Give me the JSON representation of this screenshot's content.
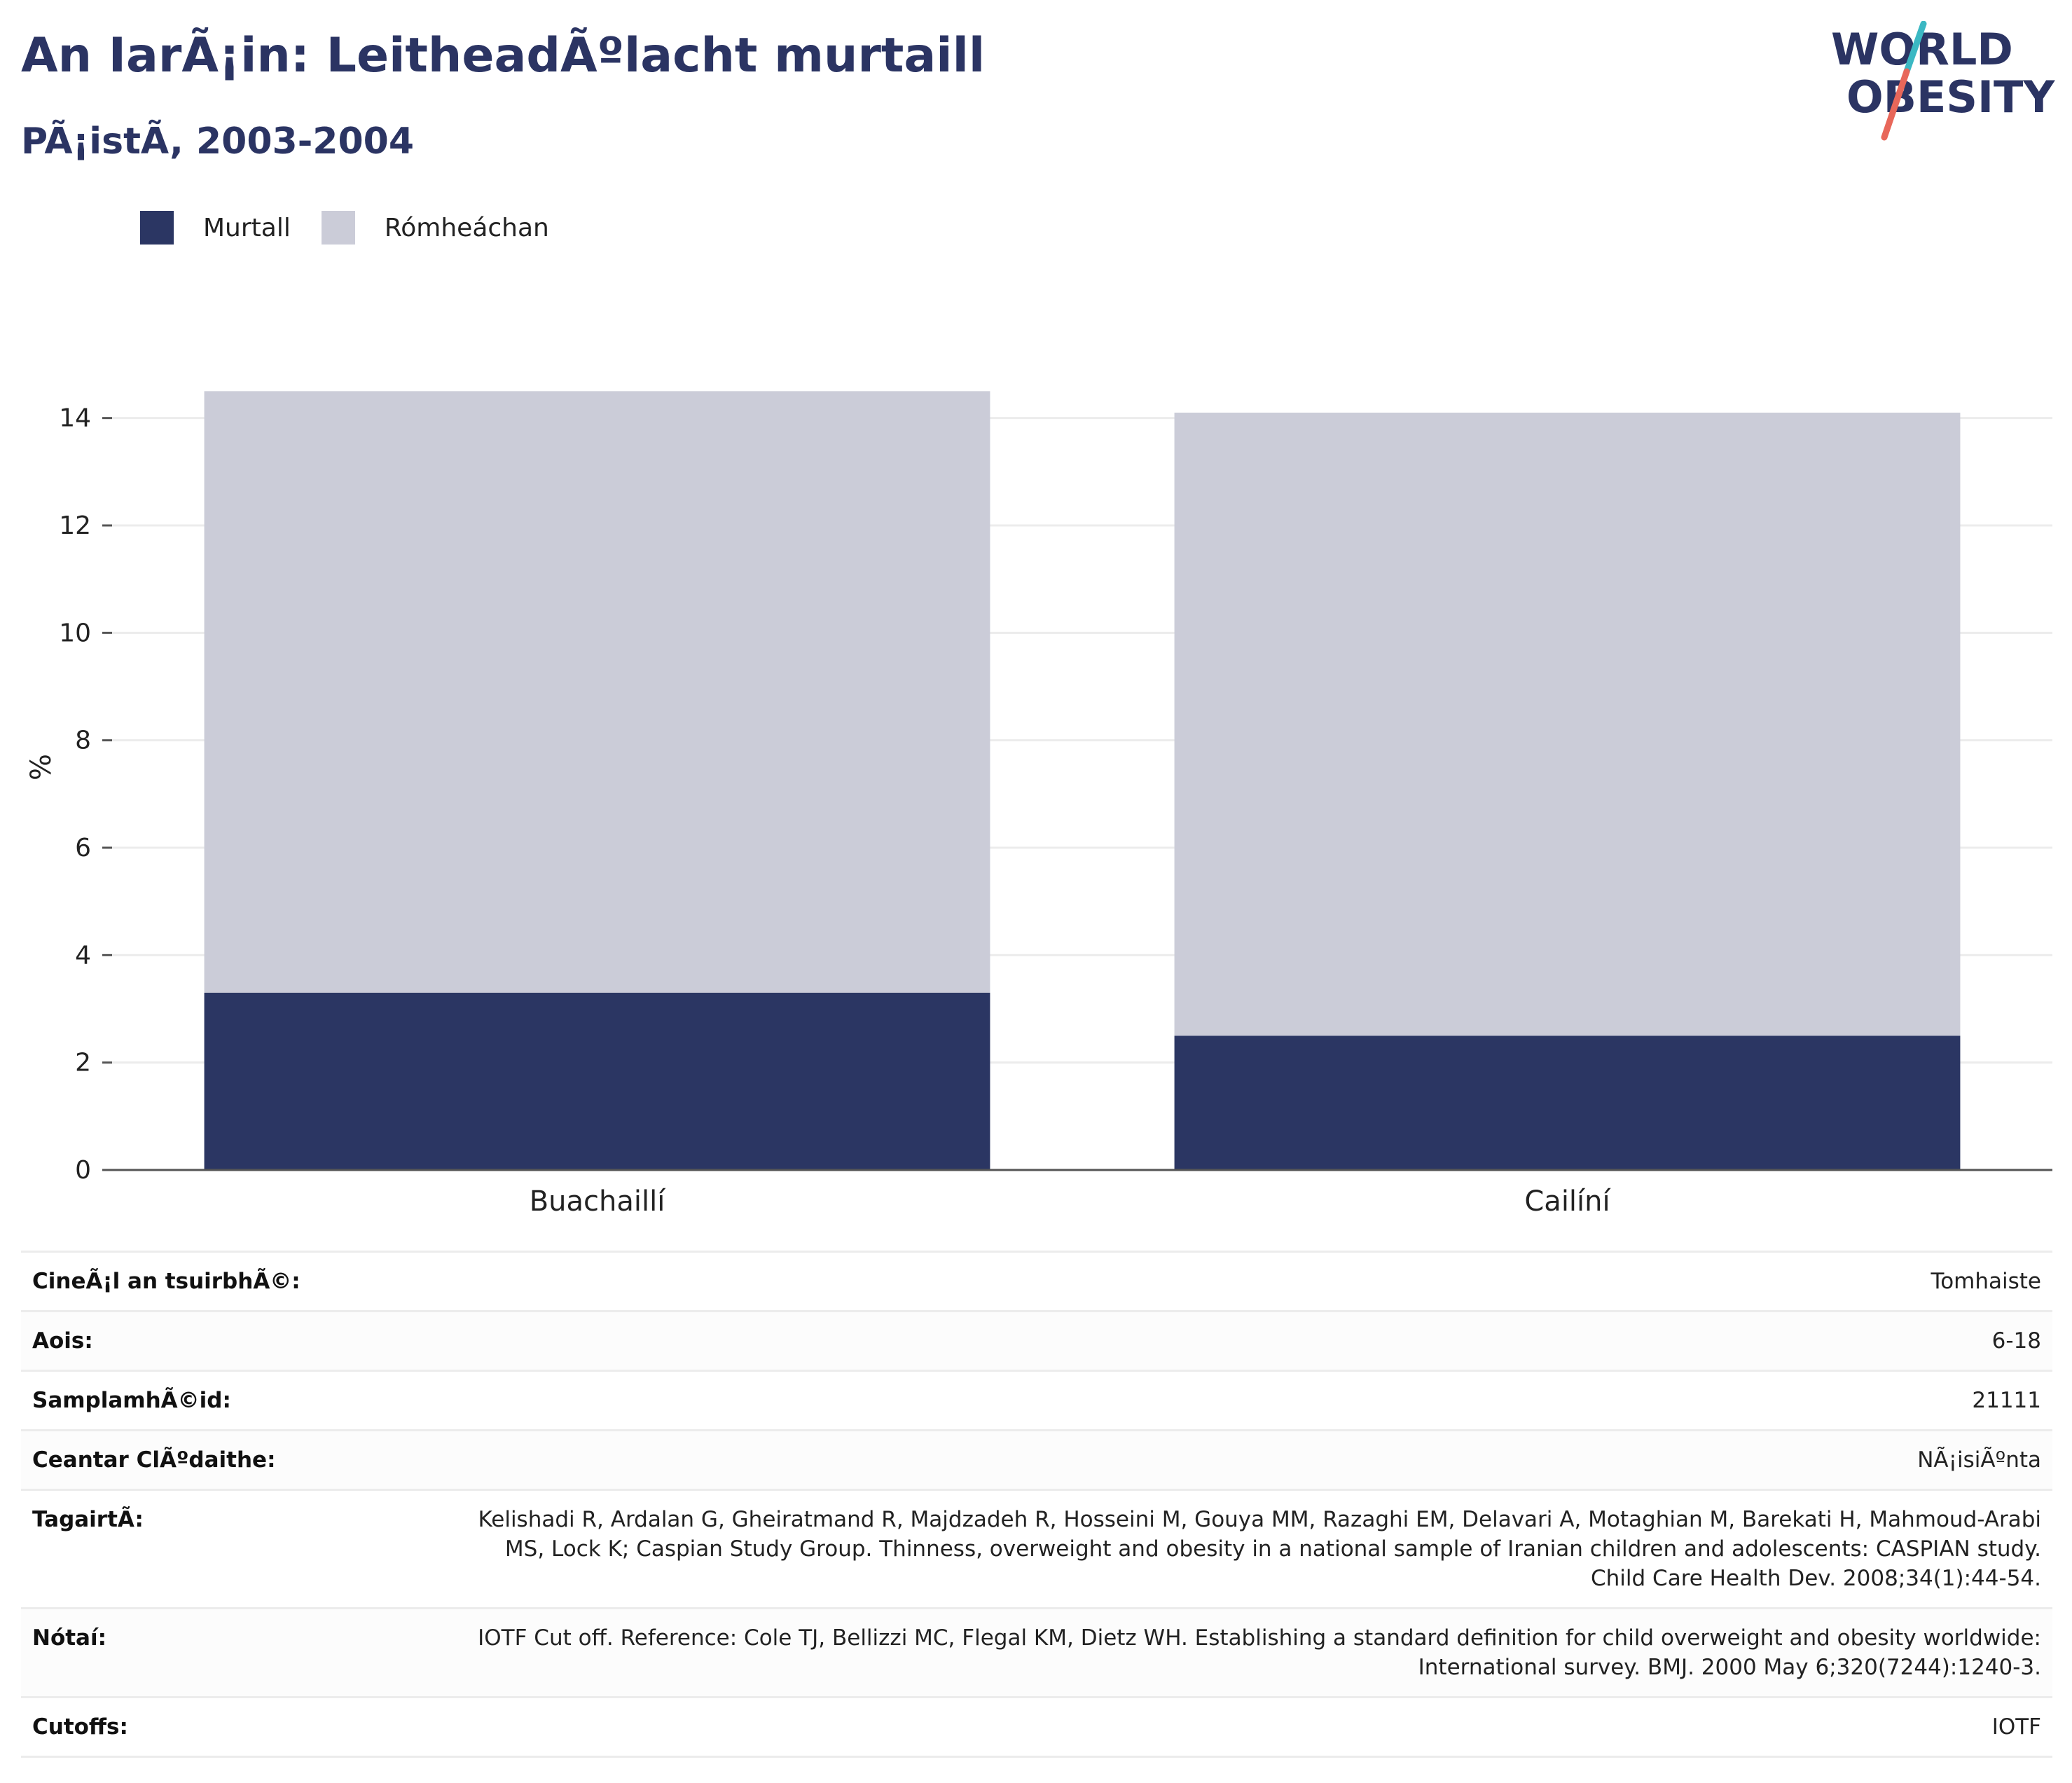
{
  "header": {
    "title": "An IarÃ¡in: LeitheadÃºlacht murtaill",
    "subtitle": "PÃ¡istÃ, 2003-2004",
    "logo_line1": "WORLD",
    "logo_line2": "OBESITY"
  },
  "colors": {
    "obese": "#2b3663",
    "overweight": "#cbccd8",
    "title": "#2b3463",
    "logo_slash_top": "#3bb8c3",
    "logo_slash_bottom": "#e8675a",
    "grid": "#ececec",
    "axis": "#555555"
  },
  "chart_data": {
    "type": "bar",
    "stacked": true,
    "categories": [
      "Buachaillí",
      "Cailíní"
    ],
    "series": [
      {
        "name": "Murtall",
        "values": [
          3.3,
          2.5
        ]
      },
      {
        "name": "Rómheáchan",
        "values": [
          11.2,
          11.6
        ]
      }
    ],
    "xlabel": "",
    "ylabel": "%",
    "ylim": [
      0,
      15
    ],
    "yticks": [
      0,
      2,
      4,
      6,
      8,
      10,
      12,
      14
    ],
    "grid": true,
    "legend_position": "top-left"
  },
  "info": {
    "rows": [
      {
        "key": "CineÃ¡l an tsuirbhÃ©:",
        "value": "Tomhaiste"
      },
      {
        "key": "Aois:",
        "value": "6-18"
      },
      {
        "key": "SamplamhÃ©id:",
        "value": "21111"
      },
      {
        "key": "Ceantar ClÃºdaithe:",
        "value": "NÃ¡isiÃºnta"
      },
      {
        "key": "TagairtÃ:",
        "value": "Kelishadi R, Ardalan G, Gheiratmand R, Majdzadeh R, Hosseini M, Gouya MM, Razaghi EM, Delavari A, Motaghian M, Barekati H, Mahmoud-Arabi MS, Lock K; Caspian Study Group. Thinness, overweight and obesity in a national sample of Iranian children and adolescents: CASPIAN study. Child Care Health Dev. 2008;34(1):44-54."
      },
      {
        "key": "Nótaí:",
        "value": "IOTF Cut off. Reference: Cole TJ, Bellizzi MC, Flegal KM, Dietz WH. Establishing a standard definition for child overweight and obesity worldwide: International survey. BMJ. 2000 May 6;320(7244):1240-3."
      },
      {
        "key": "Cutoffs:",
        "value": "IOTF"
      }
    ]
  }
}
